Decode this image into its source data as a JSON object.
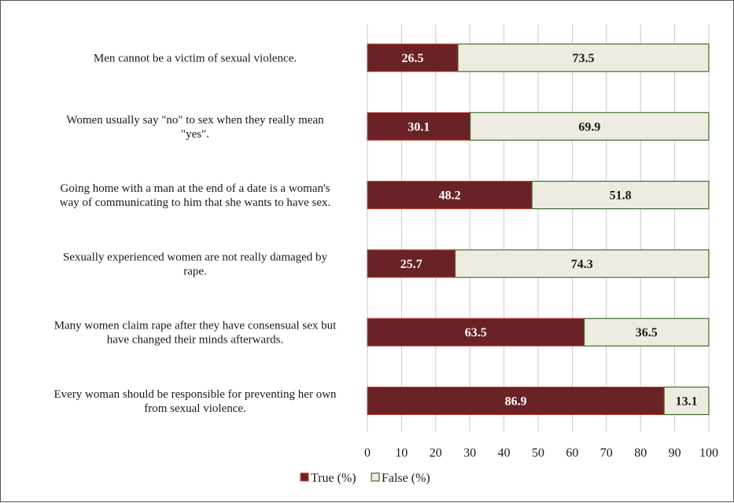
{
  "chart_data": {
    "type": "bar",
    "orientation": "horizontal",
    "stacked": true,
    "categories": [
      "Men cannot be a victim of sexual violence.",
      "Women usually say \"no\" to sex when they really mean \"yes\".",
      "Going home with a man at the end of a date is a woman's way of communicating to him that she wants to have sex.",
      "Sexually experienced women are not really damaged by rape.",
      "Many women claim rape after they have consensual sex but have changed their minds afterwards.",
      "Every woman should be responsible for preventing her own from sexual violence."
    ],
    "category_lines": [
      [
        "Men cannot be a victim of sexual violence."
      ],
      [
        "Women usually say \"no\" to sex when they really mean",
        "\"yes\"."
      ],
      [
        "Going home with a man at the end of a date is a woman's",
        "way of communicating to him that she wants to have sex."
      ],
      [
        "Sexually experienced women are not really damaged by",
        "rape."
      ],
      [
        "Many women claim rape after they have consensual sex but",
        "have changed their minds afterwards."
      ],
      [
        "Every woman should be responsible for preventing her own",
        "from sexual violence."
      ]
    ],
    "series": [
      {
        "name": "True (%)",
        "values": [
          26.5,
          30.1,
          48.2,
          25.7,
          63.5,
          86.9
        ],
        "color": "#6b2226"
      },
      {
        "name": "False (%)",
        "values": [
          73.5,
          69.9,
          51.8,
          74.3,
          36.5,
          13.1
        ],
        "color": "#eeece0"
      }
    ],
    "xlim": [
      0,
      100
    ],
    "xticks": [
      0,
      10,
      20,
      30,
      40,
      50,
      60,
      70,
      80,
      90,
      100
    ],
    "grid": true,
    "legend": "bottom",
    "title": "",
    "xlabel": "",
    "ylabel": ""
  },
  "colors": {
    "true_fill": "#6b2226",
    "true_edge": "#c0392b",
    "false_fill": "#eeece0",
    "false_edge": "#3b6e2a",
    "grid": "#c8c8c8"
  }
}
